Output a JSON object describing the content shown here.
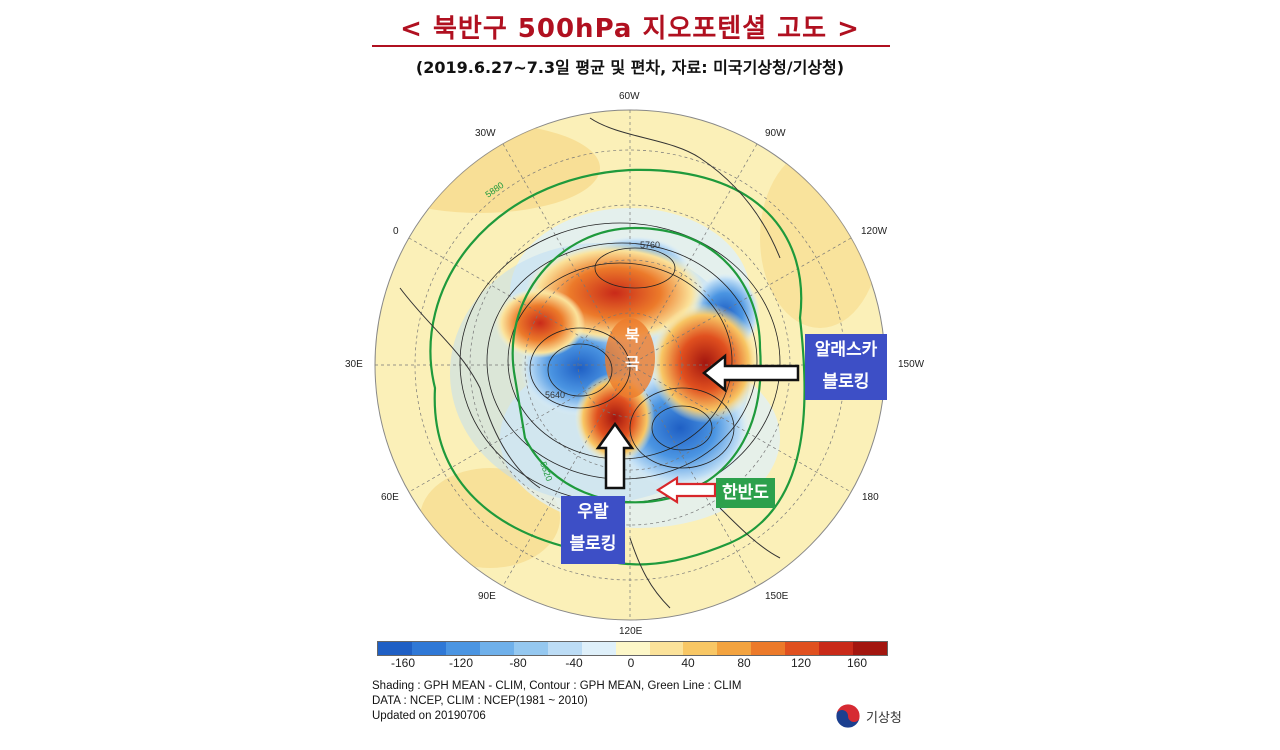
{
  "title": "< 북반구 500hPa 지오포텐셜 고도 >",
  "subtitle": "(2019.6.27~7.3일 평균 및 편차, 자료: 미국기상청/기상청)",
  "longitude_labels": [
    "60W",
    "90W",
    "120W",
    "150W",
    "180",
    "150E",
    "120E",
    "90E",
    "60E",
    "30E",
    "0",
    "30W"
  ],
  "contour_labels": [
    "5880",
    "5760",
    "5820",
    "5640"
  ],
  "pole_label": [
    "북",
    "극"
  ],
  "callouts": {
    "alaska": [
      "알래스카",
      "블로킹"
    ],
    "ural": [
      "우랄",
      "블로킹"
    ],
    "korea": "한반도"
  },
  "colorbar": {
    "tick_labels": [
      "-160",
      "-120",
      "-80",
      "-40",
      "0",
      "40",
      "80",
      "120",
      "160"
    ],
    "colors": [
      "#1f5fc4",
      "#2f78d6",
      "#4b95e2",
      "#6fb0ea",
      "#95c8f0",
      "#bcdcf5",
      "#dff0fa",
      "#fdf7c8",
      "#fbe29a",
      "#f8c765",
      "#f3a33f",
      "#ec7a2a",
      "#e0501f",
      "#c92a19",
      "#a3160f"
    ]
  },
  "notes": [
    "Shading : GPH MEAN - CLIM, Contour : GPH MEAN, Green Line : CLIM",
    "DATA : NCEP, CLIM : NCEP(1981 ~ 2010)",
    "Updated on 20190706"
  ],
  "logo_text": "기상청",
  "colors": {
    "title": "#b01020",
    "callout_blue": "#3d4fc6",
    "callout_green": "#2ca04c",
    "clim_line": "#1f9a3c"
  }
}
